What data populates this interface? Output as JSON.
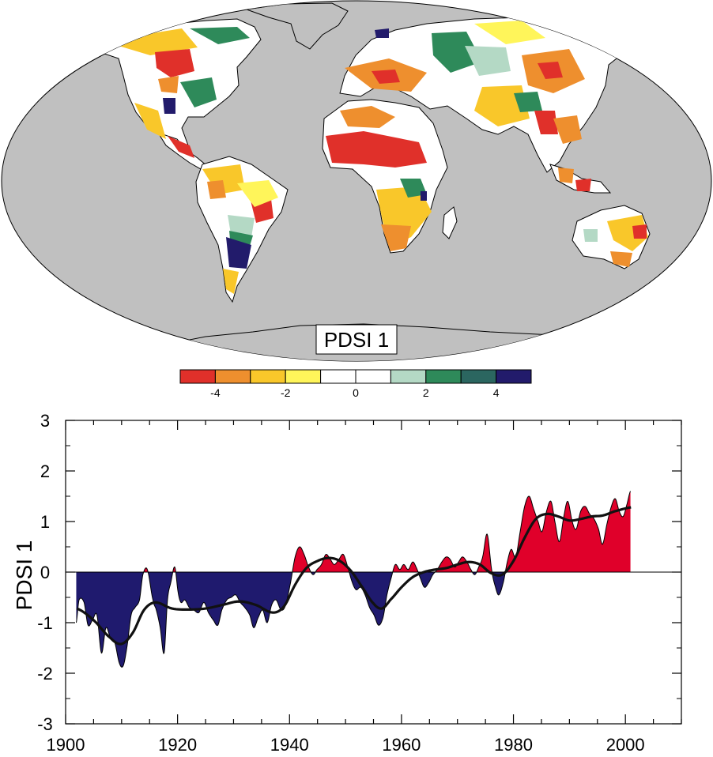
{
  "map": {
    "label": "PDSI 1",
    "ocean_color": "#c0c0c0",
    "land_pattern": "continental PDSI EOF loading; drying over Sahel, southern Africa, East Asia, Mediterranean; wetting over NE Europe, La Plata basin, central US, Argentina"
  },
  "colorbar": {
    "colors": [
      "#e0302a",
      "#ee8f2e",
      "#f9c72a",
      "#fff55a",
      "#ffffff",
      "#ffffff",
      "#b4d9c5",
      "#2e8a5a",
      "#2b6660",
      "#221b6b"
    ],
    "tick_labels": [
      "-4",
      "-2",
      "0",
      "2",
      "4"
    ]
  },
  "chart_data": {
    "type": "area",
    "ylabel": "PDSI 1",
    "xlabel": "",
    "title": "",
    "xlim": [
      1900,
      2010
    ],
    "ylim": [
      -3,
      3
    ],
    "x_ticks": [
      1900,
      1920,
      1940,
      1960,
      1980,
      2000
    ],
    "y_ticks": [
      -3,
      -2,
      -1,
      0,
      1,
      2,
      3
    ],
    "y_tick_labels": [
      "-3",
      "-2",
      "-1",
      "0",
      "1",
      "2",
      "3"
    ],
    "positive_color": "#e0002a",
    "negative_color": "#1f1a6e",
    "smooth_color": "#111111",
    "series": [
      {
        "x": [
          1901.9,
          1902.4,
          1903.3,
          1904.0,
          1904.8,
          1905.6,
          1906.4,
          1907.2,
          1908.0,
          1908.8,
          1909.6,
          1910.3,
          1911.0,
          1911.7,
          1912.4,
          1913.2,
          1913.8,
          1914.6,
          1915.6,
          1916.2,
          1916.9,
          1917.6,
          1918.2,
          1918.8,
          1919.5,
          1920.1,
          1920.6,
          1921.3,
          1922.1,
          1922.9,
          1923.8,
          1924.7,
          1925.5,
          1926.4,
          1927.2,
          1927.9,
          1928.8,
          1929.6,
          1930.4,
          1931.2,
          1932.0,
          1932.9,
          1933.6,
          1934.4,
          1935.2,
          1936.0,
          1936.8,
          1937.6,
          1938.5,
          1939.3,
          1940.2,
          1941.0,
          1941.8,
          1942.6,
          1943.4,
          1944.2,
          1944.9,
          1945.7,
          1946.5,
          1947.3,
          1948.0,
          1948.8,
          1949.6,
          1950.4,
          1951.2,
          1951.9,
          1952.7,
          1953.5,
          1954.3,
          1955.1,
          1955.9,
          1956.7,
          1957.4,
          1958.2,
          1958.9,
          1959.7,
          1960.4,
          1961.2,
          1962.0,
          1962.6,
          1963.3,
          1964.1,
          1964.9,
          1965.6,
          1966.4,
          1967.2,
          1968.0,
          1968.7,
          1969.5,
          1970.2,
          1970.9,
          1971.7,
          1972.4,
          1973.1,
          1973.8,
          1974.5,
          1975.3,
          1976.1,
          1976.8,
          1977.4,
          1978.2,
          1978.9,
          1979.6,
          1980.4,
          1981.2,
          1982.0,
          1982.8,
          1983.6,
          1984.4,
          1985.1,
          1985.9,
          1986.7,
          1987.4,
          1988.2,
          1989.0,
          1989.7,
          1990.5,
          1991.2,
          1992.0,
          1992.8,
          1993.6,
          1994.4,
          1995.2,
          1995.9,
          1996.7,
          1997.5,
          1998.2,
          1998.9,
          1999.6,
          2000.3,
          2000.9
        ],
        "values": [
          -1.0,
          -0.55,
          -0.6,
          -1.05,
          -0.95,
          -0.85,
          -1.6,
          -1.1,
          -1.3,
          -1.4,
          -1.8,
          -1.85,
          -1.45,
          -0.85,
          -0.7,
          -0.55,
          -0.05,
          0.05,
          -0.55,
          -0.75,
          -1.1,
          -1.6,
          -0.55,
          -0.2,
          0.1,
          -0.4,
          -0.6,
          -0.55,
          -0.7,
          -0.75,
          -0.8,
          -0.6,
          -0.8,
          -0.95,
          -1.05,
          -0.75,
          -0.55,
          -0.5,
          -0.45,
          -0.6,
          -0.7,
          -0.85,
          -1.1,
          -0.9,
          -0.75,
          -1.0,
          -0.65,
          -0.55,
          -0.75,
          -0.65,
          -0.2,
          0.3,
          0.5,
          0.35,
          0.1,
          -0.05,
          0.05,
          0.15,
          0.35,
          0.25,
          0.15,
          0.25,
          0.35,
          0.1,
          -0.2,
          -0.35,
          -0.3,
          -0.45,
          -0.7,
          -0.85,
          -1.05,
          -0.9,
          -0.45,
          -0.1,
          0.15,
          0.05,
          0.15,
          0.05,
          0.2,
          0.1,
          -0.1,
          -0.3,
          -0.2,
          -0.05,
          0.05,
          0.2,
          0.3,
          0.25,
          0.1,
          0.2,
          0.3,
          0.2,
          0.05,
          -0.05,
          0.1,
          0.3,
          0.75,
          0.05,
          -0.3,
          -0.45,
          -0.2,
          0.2,
          0.45,
          0.3,
          0.8,
          1.3,
          1.5,
          1.25,
          1.0,
          0.8,
          1.2,
          1.4,
          1.0,
          0.6,
          1.1,
          1.4,
          1.0,
          0.85,
          1.2,
          1.3,
          1.15,
          1.05,
          0.85,
          0.55,
          0.95,
          1.3,
          1.45,
          1.2,
          1.1,
          1.35,
          1.6
        ]
      },
      {
        "name": "smoothed",
        "x": [
          1902,
          1905,
          1908,
          1910,
          1912,
          1914,
          1916,
          1919,
          1922,
          1925,
          1928,
          1931,
          1934,
          1937,
          1939,
          1941,
          1943,
          1945,
          1947,
          1949,
          1951,
          1953,
          1955,
          1956.5,
          1958,
          1960,
          1962,
          1964,
          1966,
          1968,
          1970,
          1972,
          1974,
          1976,
          1978,
          1980,
          1982,
          1984,
          1986,
          1988,
          1990,
          1992,
          1994,
          1996,
          1998,
          2001
        ],
        "values": [
          -0.72,
          -0.95,
          -1.3,
          -1.42,
          -1.2,
          -0.75,
          -0.6,
          -0.72,
          -0.74,
          -0.72,
          -0.65,
          -0.58,
          -0.65,
          -0.8,
          -0.68,
          -0.25,
          0.08,
          0.22,
          0.28,
          0.22,
          0.02,
          -0.3,
          -0.62,
          -0.72,
          -0.55,
          -0.3,
          -0.1,
          0.0,
          0.05,
          0.08,
          0.15,
          0.2,
          0.15,
          -0.02,
          -0.05,
          0.22,
          0.68,
          1.05,
          1.15,
          1.1,
          1.02,
          1.05,
          1.1,
          1.12,
          1.2,
          1.28
        ]
      }
    ]
  }
}
